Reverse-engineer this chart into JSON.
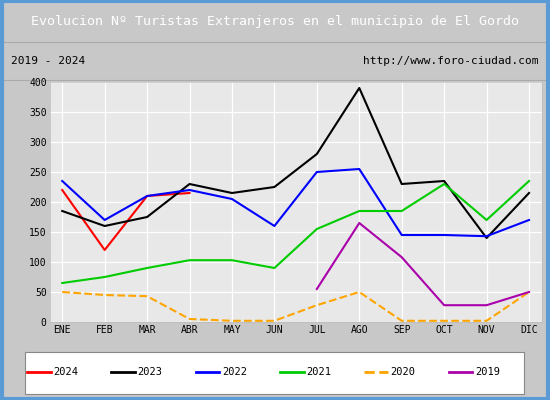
{
  "title": "Evolucion Nº Turistas Extranjeros en el municipio de El Gordo",
  "subtitle_left": "2019 - 2024",
  "subtitle_right": "http://www.foro-ciudad.com",
  "x_labels": [
    "ENE",
    "FEB",
    "MAR",
    "ABR",
    "MAY",
    "JUN",
    "JUL",
    "AGO",
    "SEP",
    "OCT",
    "NOV",
    "DIC"
  ],
  "ylim": [
    0,
    400
  ],
  "yticks": [
    0,
    50,
    100,
    150,
    200,
    250,
    300,
    350,
    400
  ],
  "series": {
    "2024": {
      "color": "red",
      "linestyle": "-",
      "linewidth": 1.5,
      "data": [
        220,
        120,
        210,
        215,
        null,
        null,
        null,
        null,
        null,
        null,
        null,
        null
      ]
    },
    "2023": {
      "color": "black",
      "linestyle": "-",
      "linewidth": 1.5,
      "data": [
        185,
        160,
        175,
        230,
        215,
        225,
        280,
        390,
        230,
        235,
        140,
        215
      ]
    },
    "2022": {
      "color": "blue",
      "linestyle": "-",
      "linewidth": 1.5,
      "data": [
        235,
        170,
        210,
        220,
        205,
        160,
        250,
        255,
        145,
        145,
        143,
        170
      ]
    },
    "2021": {
      "color": "#00cc00",
      "linestyle": "-",
      "linewidth": 1.5,
      "data": [
        65,
        75,
        90,
        103,
        103,
        90,
        155,
        185,
        185,
        230,
        170,
        235
      ]
    },
    "2020": {
      "color": "orange",
      "linestyle": "--",
      "linewidth": 1.5,
      "data": [
        50,
        45,
        43,
        5,
        2,
        2,
        28,
        50,
        2,
        2,
        2,
        50
      ]
    },
    "2019": {
      "color": "#aa00aa",
      "linestyle": "-",
      "linewidth": 1.5,
      "data": [
        null,
        null,
        null,
        null,
        null,
        null,
        55,
        165,
        108,
        28,
        28,
        50
      ]
    }
  },
  "title_bg_color": "#5B9BD5",
  "title_text_color": "white",
  "plot_bg_color": "#E8E8E8",
  "grid_color": "white",
  "fig_bg_color": "#C8C8C8",
  "border_color": "#5B9BD5"
}
